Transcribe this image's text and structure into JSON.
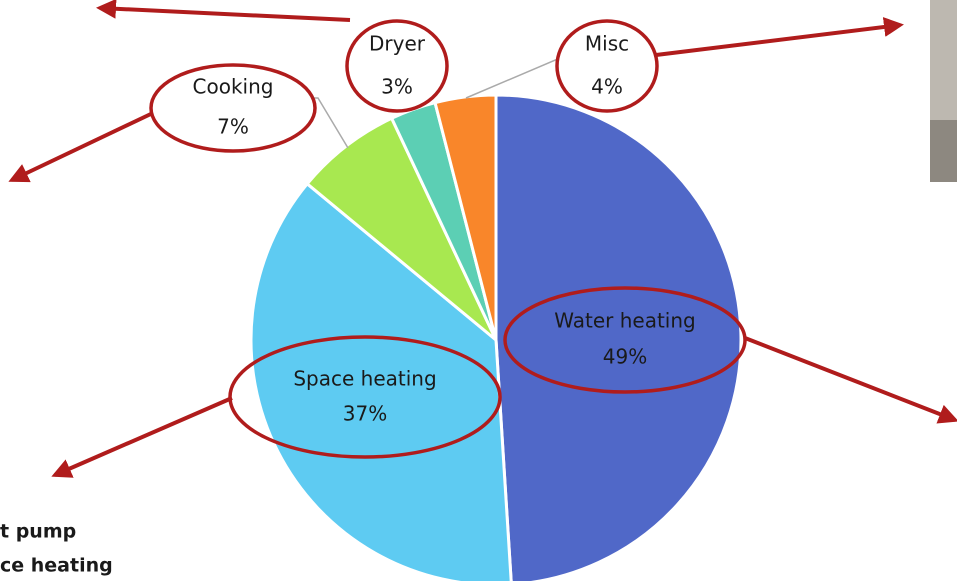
{
  "chart_data": {
    "type": "pie",
    "categories": [
      "Water heating",
      "Space heating",
      "Cooking",
      "Dryer",
      "Misc"
    ],
    "values": [
      49,
      37,
      7,
      3,
      4
    ],
    "value_labels": [
      "49%",
      "37%",
      "7%",
      "3%",
      "4%"
    ],
    "colors": [
      "#5068c8",
      "#5ecbf2",
      "#a8e850",
      "#5ccfb4",
      "#f9862a"
    ],
    "annotations": [
      "t pump",
      "ce heating"
    ]
  }
}
